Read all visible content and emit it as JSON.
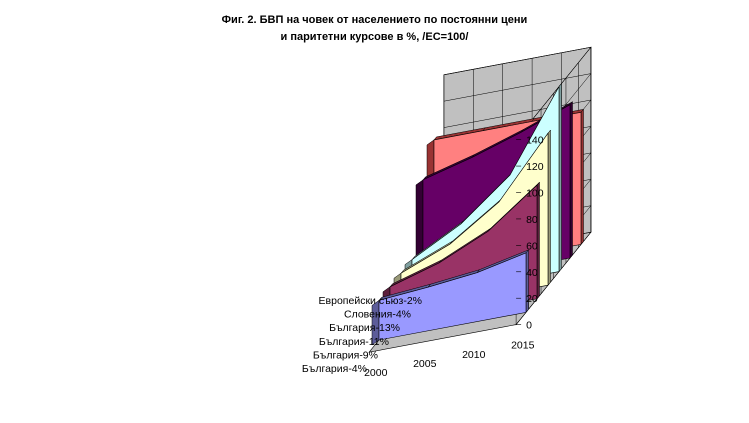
{
  "chart_data": {
    "type": "area",
    "title_line1": "Фиг. 2. БВП на човек от населението по постоянни цени",
    "title_line2": "и паритетни курсове в %, /ЕС=100/",
    "x": [
      2000,
      2005,
      2010,
      2015
    ],
    "x_tick_labels": [
      "2000",
      "2005",
      "2010",
      "2015"
    ],
    "ylim": [
      0,
      140
    ],
    "y_ticks": [
      0,
      20,
      40,
      60,
      80,
      100,
      120,
      140
    ],
    "y_tick_labels": [
      "0",
      "20",
      "40",
      "60",
      "80",
      "100",
      "120",
      "140"
    ],
    "grid": true,
    "series": [
      {
        "name": "Европейски съюз-2%",
        "values": [
          100,
          100,
          100,
          100
        ],
        "color": "#ff8080",
        "side_color": "#993333"
      },
      {
        "name": "Словения-4%",
        "values": [
          80,
          90,
          102,
          116
        ],
        "color": "#660066",
        "side_color": "#330033"
      },
      {
        "name": "България-13%",
        "values": [
          30,
          50,
          80,
          140
        ],
        "color": "#ccffff",
        "side_color": "#80a0a0"
      },
      {
        "name": "България-11%",
        "values": [
          30,
          45,
          70,
          115
        ],
        "color": "#ffffcc",
        "side_color": "#999977"
      },
      {
        "name": "България-9%",
        "values": [
          30,
          41,
          58,
          86
        ],
        "color": "#993366",
        "side_color": "#5c1f3d"
      },
      {
        "name": "България-4%",
        "values": [
          30,
          33,
          37,
          45
        ],
        "color": "#9999ff",
        "side_color": "#5c5c99"
      }
    ]
  }
}
